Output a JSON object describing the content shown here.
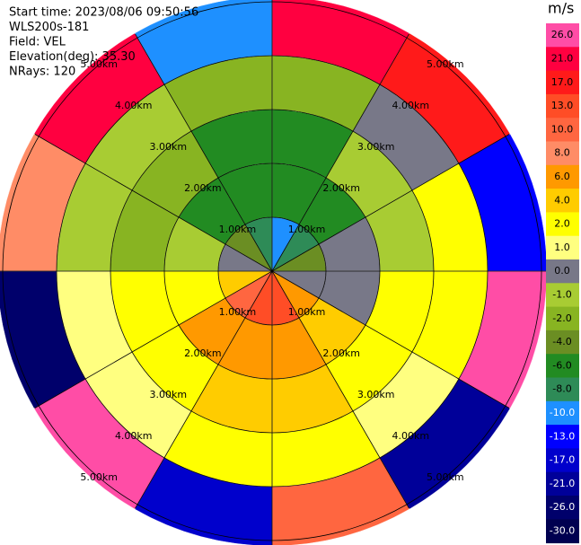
{
  "chart_data": {
    "type": "ppi",
    "info": [
      "Start time: 2023/08/06 09:50:56",
      "WLS200s-181",
      "Field: VEL",
      "Elevation(deg): 35.30",
      "NRays: 120"
    ],
    "rings": [
      1,
      2,
      3,
      4,
      5
    ],
    "ring_labels": [
      "1.00km",
      "2.00km",
      "3.00km",
      "4.00km",
      "5.00km"
    ],
    "azimuth_bins": [
      0,
      30,
      60,
      90,
      120,
      150,
      180,
      210,
      240,
      270,
      300,
      330,
      360
    ],
    "range_bins": [
      0,
      1,
      2,
      3,
      4,
      5.1
    ],
    "values": [
      [
        -10,
        -6,
        -6,
        -2,
        21
      ],
      [
        -8,
        -6,
        -1,
        0,
        17
      ],
      [
        -4,
        0,
        -1,
        2,
        -13
      ],
      [
        0,
        0,
        2,
        2,
        26
      ],
      [
        6,
        4,
        2,
        1,
        -21
      ],
      [
        13,
        6,
        4,
        2,
        10
      ],
      [
        13,
        6,
        4,
        2,
        -17
      ],
      [
        10,
        6,
        2,
        1,
        26
      ],
      [
        4,
        2,
        2,
        1,
        -26
      ],
      [
        0,
        -1,
        -2,
        -1,
        8
      ],
      [
        -4,
        -6,
        -2,
        -1,
        21
      ],
      [
        -8,
        -6,
        -6,
        -2,
        -10
      ]
    ],
    "colorbar": {
      "title": "m/s",
      "ticks": [
        {
          "value": 26,
          "label": "26.0"
        },
        {
          "value": 21,
          "label": "21.0"
        },
        {
          "value": 17,
          "label": "17.0"
        },
        {
          "value": 13,
          "label": "13.0"
        },
        {
          "value": 10,
          "label": "10.0"
        },
        {
          "value": 8,
          "label": "8.0"
        },
        {
          "value": 6,
          "label": "6.0"
        },
        {
          "value": 4,
          "label": "4.0"
        },
        {
          "value": 2,
          "label": "2.0"
        },
        {
          "value": 1,
          "label": "1.0"
        },
        {
          "value": 0,
          "label": "0.0"
        },
        {
          "value": -1,
          "label": "-1.0"
        },
        {
          "value": -2,
          "label": "-2.0"
        },
        {
          "value": -4,
          "label": "-4.0"
        },
        {
          "value": -6,
          "label": "-6.0"
        },
        {
          "value": -8,
          "label": "-8.0"
        },
        {
          "value": -10,
          "label": "-10.0"
        },
        {
          "value": -13,
          "label": "-13.0"
        },
        {
          "value": -17,
          "label": "-17.0"
        },
        {
          "value": -21,
          "label": "-21.0"
        },
        {
          "value": -26,
          "label": "-26.0"
        },
        {
          "value": -30,
          "label": "-30.0"
        }
      ],
      "colors": [
        "#ff4da6",
        "#ff0040",
        "#ff1a1a",
        "#ff4d26",
        "#ff6640",
        "#ff8c66",
        "#ff9900",
        "#ffcc00",
        "#ffff00",
        "#ffff80",
        "#787888",
        "#a8cc33",
        "#88b422",
        "#6b8e23",
        "#228b22",
        "#2e8b57",
        "#1e90ff",
        "#0000ff",
        "#0000cc",
        "#000099",
        "#00006b",
        "#000050"
      ]
    }
  }
}
